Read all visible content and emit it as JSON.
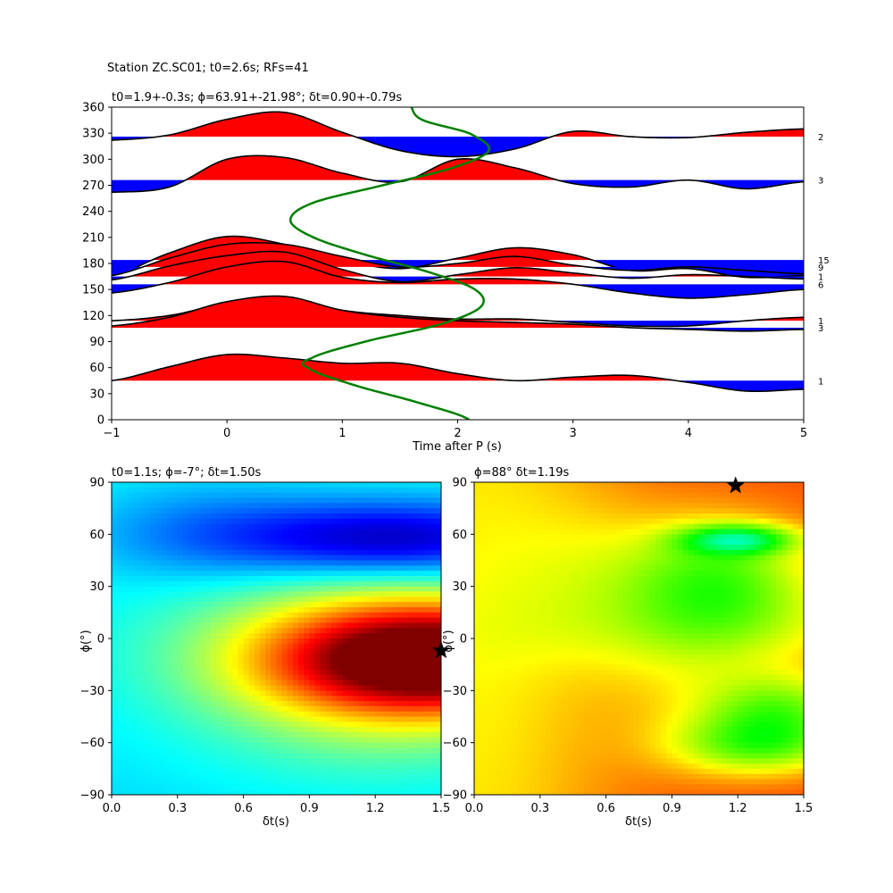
{
  "suptitle": "Station ZC.SC01; t0=2.6s; RFs=41",
  "chart_data": [
    {
      "type": "line",
      "panel": "top",
      "title": "t0=1.9+-0.3s; ϕ=63.91+-21.98°; δt=0.90+-0.79s",
      "xlabel": "Time after P (s)",
      "ylabel": "",
      "xlim": [
        -1,
        5
      ],
      "ylim": [
        0,
        360
      ],
      "xticks": [
        -1,
        0,
        1,
        2,
        3,
        4,
        5
      ],
      "yticks": [
        0,
        30,
        60,
        90,
        120,
        150,
        180,
        210,
        240,
        270,
        300,
        330,
        360
      ],
      "fill_positive_color": "#ff0000",
      "fill_negative_color": "#0000ff",
      "trace_color": "#000000",
      "green_curve_color": "#008000",
      "traces": [
        {
          "baseaz": 326,
          "count": "2",
          "t": [
            -1,
            -0.5,
            0,
            0.5,
            1,
            1.5,
            2,
            2.5,
            3,
            3.5,
            4,
            4.5,
            5
          ],
          "v": [
            -4,
            2,
            20,
            28,
            5,
            -16,
            -23,
            -14,
            6,
            0,
            -1,
            5,
            9
          ]
        },
        {
          "baseaz": 276,
          "count": "3",
          "t": [
            -1,
            -0.5,
            0,
            0.5,
            1,
            1.5,
            2,
            2.5,
            3,
            3.5,
            4,
            4.5,
            5
          ],
          "v": [
            -14,
            -8,
            24,
            26,
            8,
            -2,
            24,
            14,
            -4,
            -8,
            0,
            -10,
            -2
          ]
        },
        {
          "baseaz": 184,
          "count": "15",
          "t": [
            -1,
            -0.5,
            0,
            0.5,
            1,
            1.5,
            2,
            2.5,
            3,
            3.5,
            4,
            4.5,
            5
          ],
          "v": [
            -18,
            8,
            27,
            18,
            0,
            -10,
            2,
            14,
            6,
            -12,
            -10,
            -20,
            -18
          ]
        },
        {
          "baseaz": 176,
          "count": "9",
          "t": [
            -1,
            -0.5,
            0,
            0.5,
            1,
            1.5,
            2,
            2.5,
            3,
            3.5,
            4,
            4.5,
            5
          ],
          "v": [
            -10,
            10,
            26,
            26,
            12,
            0,
            4,
            12,
            2,
            -4,
            0,
            -4,
            -8
          ]
        },
        {
          "baseaz": 165,
          "count": "1",
          "t": [
            -1,
            -0.5,
            0,
            0.5,
            1,
            1.5,
            2,
            2.5,
            3,
            3.5,
            4,
            4.5,
            5
          ],
          "v": [
            -4,
            12,
            24,
            28,
            8,
            -6,
            2,
            10,
            4,
            -2,
            2,
            0,
            -3
          ]
        },
        {
          "baseaz": 156,
          "count": "6",
          "t": [
            -1,
            -0.5,
            0,
            0.5,
            1,
            1.5,
            2,
            2.5,
            3,
            3.5,
            4,
            4.5,
            5
          ],
          "v": [
            -10,
            2,
            20,
            26,
            8,
            2,
            6,
            6,
            0,
            -10,
            -16,
            -12,
            -6
          ]
        },
        {
          "baseaz": 114,
          "count": "1",
          "t": [
            -1,
            -0.5,
            0,
            0.5,
            1,
            1.5,
            2,
            2.5,
            3,
            3.5,
            4,
            4.5,
            5
          ],
          "v": [
            0,
            6,
            20,
            26,
            12,
            6,
            2,
            2,
            -2,
            -6,
            -6,
            0,
            4
          ]
        },
        {
          "baseaz": 106,
          "count": "3",
          "t": [
            -1,
            -0.5,
            0,
            0.5,
            1,
            1.5,
            2,
            2.5,
            3,
            3.5,
            4,
            4.5,
            5
          ],
          "v": [
            2,
            12,
            30,
            36,
            20,
            12,
            8,
            6,
            4,
            0,
            -2,
            -4,
            -2
          ]
        },
        {
          "baseaz": 45,
          "count": "1",
          "t": [
            -1,
            -0.5,
            0,
            0.5,
            1,
            1.5,
            2,
            2.5,
            3,
            3.5,
            4,
            4.5,
            5
          ],
          "v": [
            0,
            16,
            30,
            26,
            20,
            20,
            8,
            0,
            4,
            6,
            -2,
            -12,
            -10
          ]
        }
      ],
      "green_curve": {
        "az": [
          0,
          20,
          40,
          60,
          70,
          90,
          110,
          130,
          150,
          170,
          190,
          210,
          230,
          250,
          270,
          290,
          310,
          330,
          345,
          360
        ],
        "t": [
          2.1,
          1.65,
          1.1,
          0.7,
          0.72,
          1.2,
          1.85,
          2.2,
          2.15,
          1.75,
          1.2,
          0.75,
          0.55,
          0.75,
          1.35,
          1.95,
          2.27,
          2.1,
          1.7,
          1.6
        ]
      }
    },
    {
      "type": "heatmap",
      "panel": "bottom-left",
      "title": "t0=1.1s; ϕ=-7°; δt=1.50s",
      "xlabel": "δt(s)",
      "ylabel": "ϕ(°)",
      "xlim": [
        0,
        1.5
      ],
      "ylim": [
        -90,
        90
      ],
      "xticks": [
        0.0,
        0.3,
        0.6,
        0.9,
        1.2,
        1.5
      ],
      "yticks": [
        -90,
        -60,
        -30,
        0,
        30,
        60,
        90
      ],
      "colormap": "jet",
      "best": {
        "dt": 1.5,
        "phi": -7
      }
    },
    {
      "type": "heatmap",
      "panel": "bottom-right",
      "title": "ϕ=88° δt=1.19s",
      "xlabel": "δt(s)",
      "ylabel": "ϕ(°)",
      "xlim": [
        0,
        1.5
      ],
      "ylim": [
        -90,
        90
      ],
      "xticks": [
        0.0,
        0.3,
        0.6,
        0.9,
        1.2,
        1.5
      ],
      "yticks": [
        -90,
        -60,
        -30,
        0,
        30,
        60,
        90
      ],
      "colormap": "hsv",
      "best": {
        "dt": 1.19,
        "phi": 88
      }
    }
  ]
}
